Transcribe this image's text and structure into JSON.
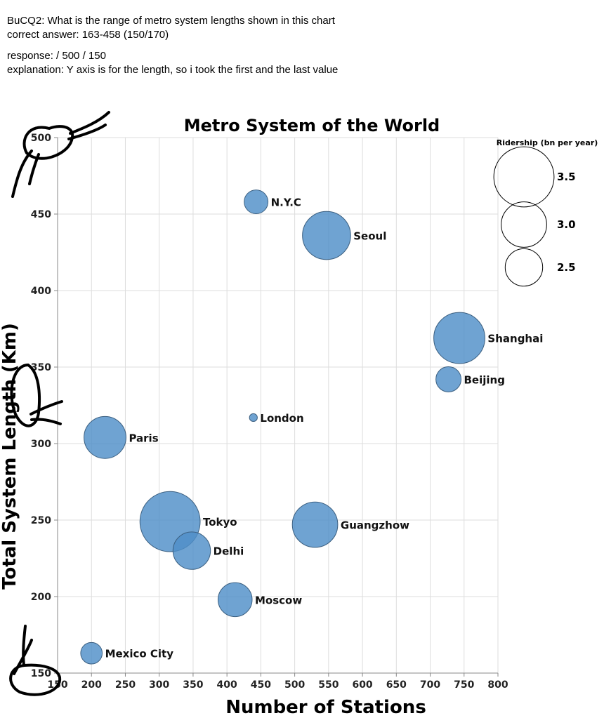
{
  "annotation": {
    "question": "BuCQ2: What is the range of metro system lengths shown in this chart",
    "correct_answer": "correct answer:  163-458 (150/170)",
    "response": "response:  / 500 / 150",
    "explanation": "explanation: Y axis is for the length, so i took the first and the last value"
  },
  "chart_data": {
    "type": "scatter",
    "title": "Metro System of the World",
    "xlabel": "Number of Stations",
    "ylabel": "Total System Length (Km)",
    "xlim": [
      150,
      800
    ],
    "ylim": [
      150,
      500
    ],
    "xticks": [
      150,
      200,
      250,
      300,
      350,
      400,
      450,
      500,
      550,
      600,
      650,
      700,
      750,
      800
    ],
    "yticks": [
      150,
      200,
      250,
      300,
      350,
      400,
      450,
      500
    ],
    "grid": true,
    "size_legend": {
      "title": "Ridership (bn per year)",
      "values": [
        "3.5",
        "3.0",
        "2.5"
      ],
      "placement": "top-right"
    },
    "point_color": "#4f8fc8",
    "points": [
      {
        "label": "N.Y.C",
        "x": 443,
        "y": 458,
        "ridership": 2.0
      },
      {
        "label": "Seoul",
        "x": 547,
        "y": 436,
        "ridership": 3.07
      },
      {
        "label": "Shanghai",
        "x": 743,
        "y": 369,
        "ridership": 3.2
      },
      {
        "label": "Beijing",
        "x": 727,
        "y": 342,
        "ridership": 2.06
      },
      {
        "label": "London",
        "x": 439,
        "y": 317,
        "ridership": 1.3
      },
      {
        "label": "Paris",
        "x": 220,
        "y": 304,
        "ridership": 2.8
      },
      {
        "label": "Tokyo",
        "x": 316,
        "y": 249,
        "ridership": 3.6
      },
      {
        "label": "Delhi",
        "x": 348,
        "y": 230,
        "ridership": 2.6
      },
      {
        "label": "Guangzhow",
        "x": 530,
        "y": 247,
        "ridership": 2.95
      },
      {
        "label": "Moscow",
        "x": 412,
        "y": 198,
        "ridership": 2.45
      },
      {
        "label": "Mexico City",
        "x": 200,
        "y": 163,
        "ridership": 1.9
      }
    ]
  }
}
